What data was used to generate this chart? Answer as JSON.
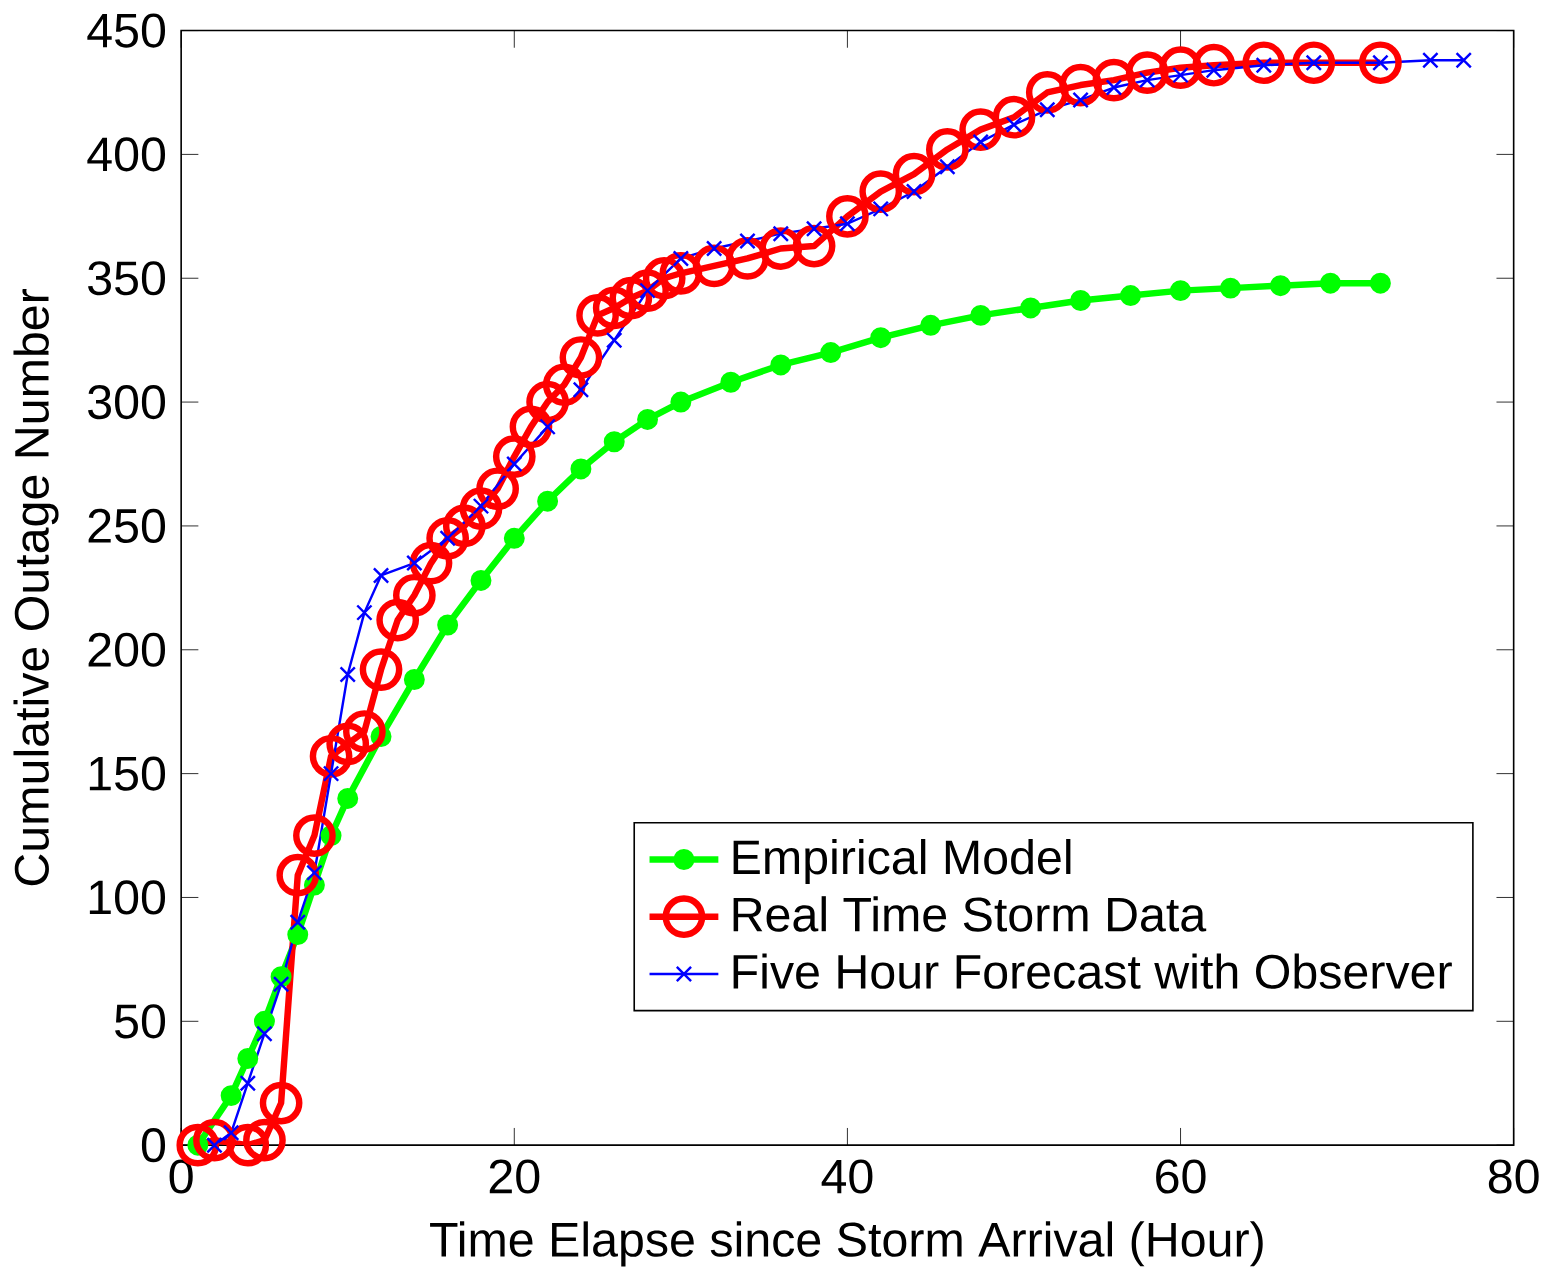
{
  "chart_data": {
    "type": "line",
    "xlabel": "Time Elapse since Storm Arrival (Hour)",
    "ylabel": "Cumulative Outage Number",
    "xlim": [
      0,
      80
    ],
    "ylim": [
      0,
      450
    ],
    "xticks": [
      0,
      20,
      40,
      60,
      80
    ],
    "yticks": [
      0,
      50,
      100,
      150,
      200,
      250,
      300,
      350,
      400,
      450
    ],
    "legend": "bottom right",
    "grid": false,
    "series": [
      {
        "name": "Empirical Model",
        "color": "#00ff00",
        "marker": "circle",
        "x": [
          1,
          2,
          3,
          4,
          5,
          6,
          7,
          8,
          9,
          10,
          12,
          14,
          16,
          18,
          20,
          22,
          24,
          26,
          28,
          30,
          33,
          36,
          39,
          42,
          45,
          48,
          51,
          54,
          57,
          60,
          63,
          66,
          69,
          72
        ],
        "values": [
          0,
          null,
          20,
          35,
          50,
          68,
          85,
          105,
          125,
          140,
          165,
          188,
          210,
          228,
          245,
          260,
          273,
          284,
          293,
          300,
          308,
          315,
          320,
          326,
          331,
          335,
          338,
          341,
          343,
          345,
          346,
          347,
          348,
          348
        ]
      },
      {
        "name": "Real Time Storm Data",
        "color": "#ff0000",
        "marker": "circle",
        "x": [
          1,
          2,
          3,
          4,
          5,
          6,
          7,
          8,
          9,
          10,
          11,
          12,
          13,
          14,
          15,
          16,
          17,
          18,
          19,
          20,
          21,
          22,
          23,
          24,
          25,
          26,
          27,
          28,
          29,
          30,
          32,
          34,
          36,
          38,
          40,
          42,
          44,
          46,
          48,
          50,
          52,
          54,
          56,
          58,
          60,
          62,
          65,
          68,
          72
        ],
        "values": [
          0,
          2,
          null,
          0,
          2,
          17,
          109,
          125,
          157,
          162,
          167,
          192,
          212,
          222,
          235,
          245,
          250,
          257,
          265,
          278,
          290,
          300,
          307,
          318,
          335,
          338,
          342,
          345,
          350,
          352,
          355,
          358,
          362,
          363,
          375,
          385,
          392,
          402,
          410,
          415,
          425,
          428,
          430,
          433,
          435,
          436,
          437,
          437,
          437
        ]
      },
      {
        "name": "Five Hour Forecast with Observer",
        "color": "#0000ff",
        "marker": "cross",
        "x": [
          2,
          3,
          4,
          5,
          6,
          7,
          8,
          9,
          10,
          11,
          12,
          14,
          16,
          18,
          20,
          22,
          24,
          26,
          28,
          30,
          32,
          34,
          36,
          38,
          40,
          42,
          44,
          46,
          48,
          50,
          52,
          54,
          56,
          58,
          60,
          62,
          65,
          68,
          72,
          75,
          77
        ],
        "values": [
          0,
          5,
          25,
          45,
          65,
          90,
          110,
          150,
          190,
          215,
          230,
          235,
          245,
          258,
          275,
          290,
          305,
          325,
          345,
          358,
          362,
          365,
          368,
          370,
          372,
          378,
          385,
          395,
          405,
          412,
          418,
          422,
          427,
          430,
          432,
          434,
          436,
          437,
          437,
          438,
          438
        ]
      }
    ]
  }
}
